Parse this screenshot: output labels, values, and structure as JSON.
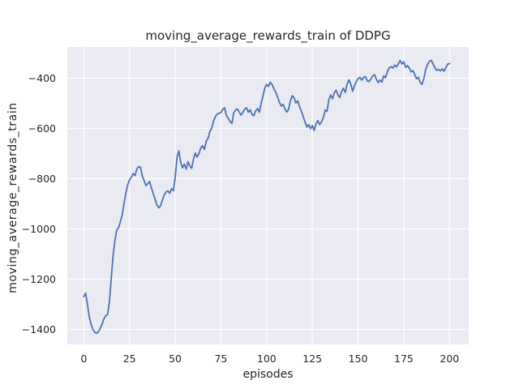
{
  "chart_data": {
    "type": "line",
    "title": "moving_average_rewards_train of DDPG",
    "xlabel": "episodes",
    "ylabel": "moving_average_rewards_train",
    "xlim": [
      -9,
      210.5
    ],
    "ylim": [
      -1460,
      -276
    ],
    "xticks": [
      0,
      25,
      50,
      75,
      100,
      125,
      150,
      175,
      200
    ],
    "xtick_labels": [
      "0",
      "25",
      "50",
      "75",
      "100",
      "125",
      "150",
      "175",
      "200"
    ],
    "yticks": [
      -400,
      -600,
      -800,
      -1000,
      -1200,
      -1400
    ],
    "ytick_labels": [
      "−400",
      "−600",
      "−800",
      "−1000",
      "−1200",
      "−1400"
    ],
    "grid": true,
    "legend_visible": false,
    "style": "seaborn-darkgrid",
    "colors": {
      "line": "#4c72b0",
      "axes_background": "#eaeaf2",
      "grid": "#ffffff",
      "figure_background": "#ffffff",
      "text": "#262626"
    },
    "series": [
      {
        "name": "moving_average_rewards_train",
        "x_start": 0,
        "x_step": 1,
        "y": [
          -1270,
          -1256,
          -1300,
          -1350,
          -1380,
          -1400,
          -1411,
          -1416,
          -1410,
          -1396,
          -1380,
          -1358,
          -1346,
          -1341,
          -1292,
          -1200,
          -1110,
          -1048,
          -1005,
          -996,
          -972,
          -945,
          -900,
          -858,
          -826,
          -805,
          -795,
          -780,
          -788,
          -762,
          -752,
          -755,
          -790,
          -808,
          -828,
          -820,
          -812,
          -838,
          -860,
          -882,
          -905,
          -916,
          -908,
          -885,
          -865,
          -853,
          -849,
          -858,
          -840,
          -848,
          -795,
          -715,
          -689,
          -735,
          -757,
          -742,
          -762,
          -733,
          -750,
          -759,
          -722,
          -698,
          -714,
          -700,
          -678,
          -669,
          -684,
          -650,
          -639,
          -612,
          -598,
          -570,
          -553,
          -543,
          -540,
          -537,
          -524,
          -518,
          -548,
          -560,
          -573,
          -580,
          -538,
          -527,
          -523,
          -535,
          -547,
          -536,
          -523,
          -518,
          -536,
          -526,
          -544,
          -550,
          -530,
          -521,
          -536,
          -500,
          -470,
          -440,
          -425,
          -433,
          -416,
          -426,
          -443,
          -456,
          -476,
          -496,
          -511,
          -504,
          -522,
          -535,
          -524,
          -490,
          -470,
          -478,
          -499,
          -490,
          -513,
          -532,
          -553,
          -574,
          -595,
          -585,
          -601,
          -589,
          -608,
          -582,
          -569,
          -585,
          -574,
          -558,
          -527,
          -532,
          -486,
          -467,
          -482,
          -458,
          -448,
          -467,
          -477,
          -453,
          -440,
          -457,
          -424,
          -407,
          -423,
          -452,
          -431,
          -415,
          -402,
          -397,
          -408,
          -397,
          -394,
          -411,
          -413,
          -404,
          -391,
          -386,
          -404,
          -418,
          -407,
          -416,
          -391,
          -398,
          -375,
          -359,
          -354,
          -360,
          -348,
          -355,
          -343,
          -330,
          -344,
          -335,
          -357,
          -350,
          -360,
          -375,
          -370,
          -386,
          -403,
          -396,
          -418,
          -425,
          -400,
          -365,
          -345,
          -333,
          -329,
          -344,
          -359,
          -369,
          -365,
          -371,
          -363,
          -372,
          -358,
          -344,
          -342
        ]
      }
    ]
  }
}
